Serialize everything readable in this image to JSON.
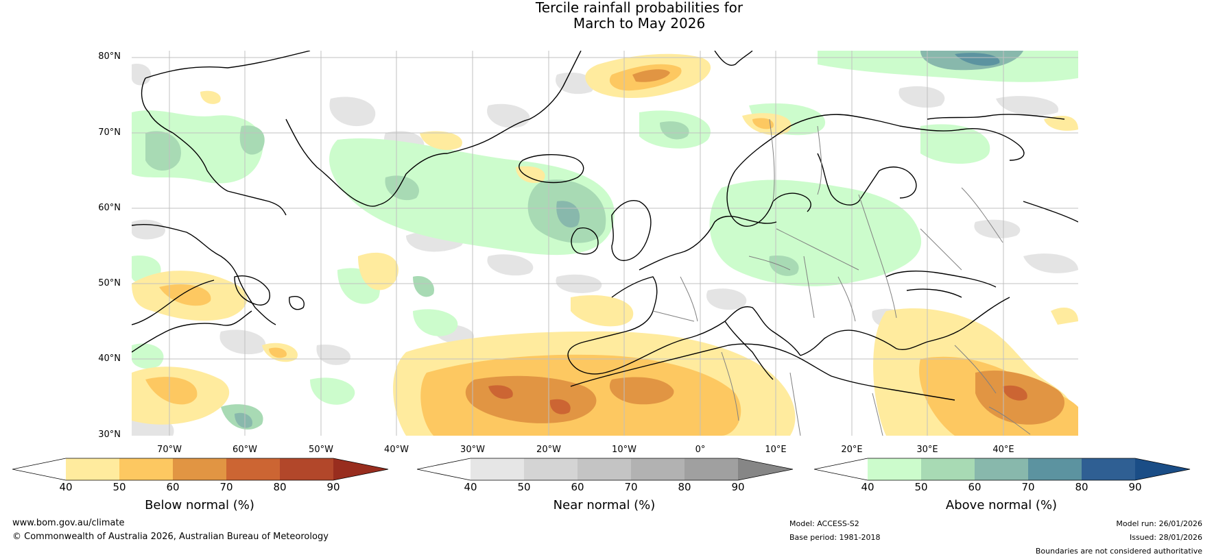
{
  "title": {
    "line1": "Tercile rainfall probabilities for",
    "line2": "March to May 2026"
  },
  "map": {
    "lat_labels": [
      "80°N",
      "70°N",
      "60°N",
      "50°N",
      "40°N",
      "30°N"
    ],
    "lon_labels": [
      "70°W",
      "60°W",
      "50°W",
      "40°W",
      "30°W",
      "20°W",
      "10°W",
      "0°",
      "10°E",
      "20°E",
      "30°E",
      "40°E"
    ]
  },
  "colorbars": {
    "below": {
      "title": "Below normal (%)",
      "ticks": [
        "40",
        "50",
        "60",
        "70",
        "80",
        "90"
      ],
      "colors": [
        "#ffffff",
        "#ffeb9e",
        "#fdc861",
        "#e19543",
        "#cc6533",
        "#b2472a",
        "#982d1e"
      ]
    },
    "near": {
      "title": "Near normal (%)",
      "ticks": [
        "40",
        "50",
        "60",
        "70",
        "80",
        "90"
      ],
      "colors": [
        "#ffffff",
        "#e6e6e6",
        "#d4d4d4",
        "#c4c4c4",
        "#b2b2b2",
        "#a0a0a0",
        "#868686"
      ]
    },
    "above": {
      "title": "Above normal (%)",
      "ticks": [
        "40",
        "50",
        "60",
        "70",
        "80",
        "90"
      ],
      "colors": [
        "#ffffff",
        "#ccfccc",
        "#a8dab4",
        "#88b8ac",
        "#5c93a0",
        "#2f5f93",
        "#1a4d86"
      ]
    }
  },
  "footer": {
    "url": "www.bom.gov.au/climate",
    "copyright": "© Commonwealth of Australia 2026, Australian Bureau of Meteorology",
    "model": "Model: ACCESS-S2",
    "base_period": "Base period: 1981-2018",
    "model_run": "Model run: 26/01/2026",
    "issued": "Issued: 28/01/2026",
    "boundaries": "Boundaries are not considered authoritative"
  }
}
